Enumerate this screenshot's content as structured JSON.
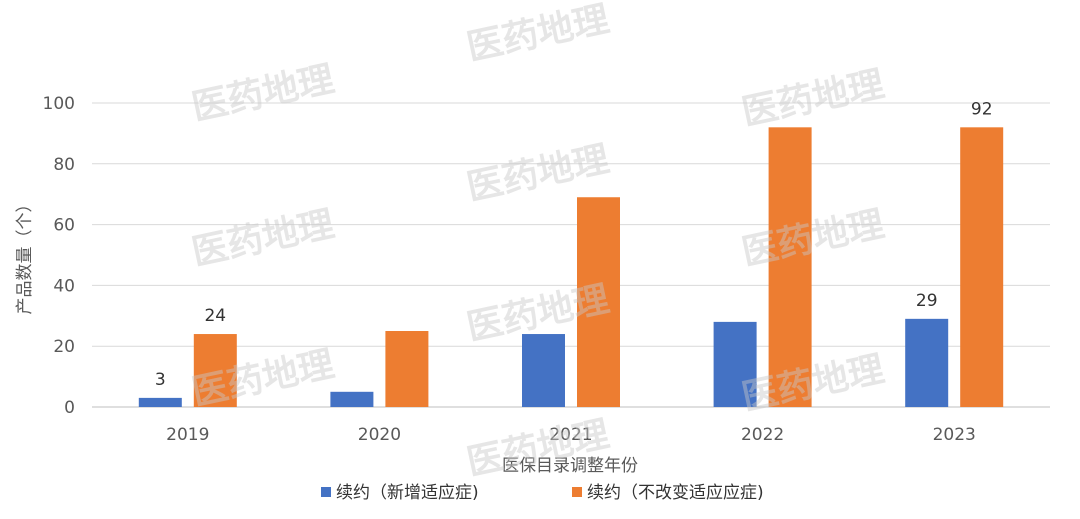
{
  "watermark": "医药地理",
  "chart_data": {
    "type": "bar",
    "categories": [
      "2019",
      "2020",
      "2021",
      "2022",
      "2023"
    ],
    "series": [
      {
        "name": "续约（新增适应症)",
        "color": "#4472c4",
        "values": [
          3,
          5,
          24,
          28,
          29
        ],
        "labels": [
          "3",
          "",
          "",
          "",
          "29"
        ]
      },
      {
        "name": "续约（不改变适应应症)",
        "color": "#ed7d31",
        "values": [
          24,
          25,
          69,
          92,
          92
        ],
        "labels": [
          "24",
          "",
          "",
          "",
          "92"
        ]
      }
    ],
    "xlabel": "医保目录调整年份",
    "ylabel": "产品数量（个）",
    "ylim": [
      0,
      100
    ],
    "yticks": [
      "0",
      "20",
      "40",
      "60",
      "80",
      "100"
    ],
    "grid": true,
    "legend_position": "bottom"
  }
}
